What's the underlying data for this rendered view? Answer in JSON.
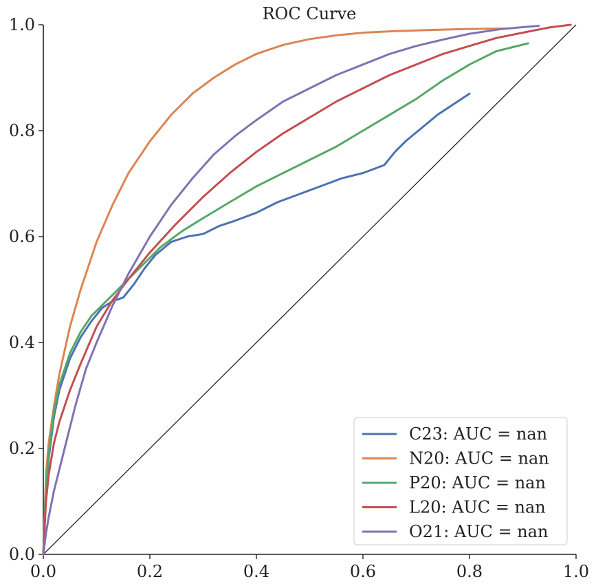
{
  "chart_data": {
    "type": "line",
    "title": "ROC Curve",
    "xlabel": "",
    "ylabel": "",
    "xlim": [
      0.0,
      1.0
    ],
    "ylim": [
      0.0,
      1.0
    ],
    "x_ticks": [
      "0.0",
      "0.2",
      "0.4",
      "0.6",
      "0.8",
      "1.0"
    ],
    "y_ticks": [
      "0.0",
      "0.2",
      "0.4",
      "0.6",
      "0.8",
      "1.0"
    ],
    "grid": false,
    "legend_position": "bottom-right",
    "reference_line": {
      "x": [
        0.0,
        1.0
      ],
      "y": [
        0.0,
        1.0
      ],
      "color": "#222222"
    },
    "series": [
      {
        "name": "C23: AUC =  nan",
        "color": "#4c72b0",
        "x": [
          0.0,
          0.005,
          0.01,
          0.02,
          0.03,
          0.05,
          0.07,
          0.09,
          0.11,
          0.13,
          0.15,
          0.17,
          0.19,
          0.21,
          0.24,
          0.27,
          0.3,
          0.33,
          0.36,
          0.4,
          0.44,
          0.48,
          0.52,
          0.56,
          0.6,
          0.64,
          0.66,
          0.68,
          0.71,
          0.74,
          0.77,
          0.8
        ],
        "y": [
          0.0,
          0.12,
          0.18,
          0.26,
          0.31,
          0.37,
          0.41,
          0.44,
          0.465,
          0.478,
          0.485,
          0.51,
          0.54,
          0.565,
          0.59,
          0.6,
          0.605,
          0.62,
          0.63,
          0.645,
          0.665,
          0.68,
          0.695,
          0.71,
          0.72,
          0.735,
          0.76,
          0.78,
          0.805,
          0.83,
          0.85,
          0.87
        ]
      },
      {
        "name": "N20: AUC =  nan",
        "color": "#dd8452",
        "x": [
          0.0,
          0.005,
          0.01,
          0.02,
          0.03,
          0.05,
          0.07,
          0.1,
          0.13,
          0.16,
          0.2,
          0.24,
          0.28,
          0.32,
          0.36,
          0.4,
          0.45,
          0.5,
          0.55,
          0.6,
          0.66,
          0.72,
          0.79,
          0.87
        ],
        "y": [
          0.0,
          0.15,
          0.21,
          0.28,
          0.34,
          0.43,
          0.5,
          0.59,
          0.66,
          0.72,
          0.78,
          0.83,
          0.87,
          0.9,
          0.925,
          0.945,
          0.962,
          0.973,
          0.98,
          0.985,
          0.988,
          0.99,
          0.992,
          0.993
        ]
      },
      {
        "name": "P20: AUC =  nan",
        "color": "#55a868",
        "x": [
          0.0,
          0.005,
          0.01,
          0.02,
          0.03,
          0.05,
          0.07,
          0.09,
          0.12,
          0.15,
          0.18,
          0.22,
          0.26,
          0.3,
          0.35,
          0.4,
          0.45,
          0.5,
          0.55,
          0.6,
          0.65,
          0.7,
          0.75,
          0.8,
          0.85,
          0.91
        ],
        "y": [
          0.0,
          0.13,
          0.19,
          0.27,
          0.32,
          0.38,
          0.42,
          0.45,
          0.48,
          0.51,
          0.54,
          0.58,
          0.61,
          0.635,
          0.665,
          0.695,
          0.72,
          0.745,
          0.77,
          0.8,
          0.83,
          0.86,
          0.895,
          0.925,
          0.95,
          0.965
        ]
      },
      {
        "name": "L20: AUC =  nan",
        "color": "#c44e52",
        "x": [
          0.0,
          0.005,
          0.01,
          0.02,
          0.03,
          0.05,
          0.07,
          0.1,
          0.13,
          0.16,
          0.2,
          0.25,
          0.3,
          0.35,
          0.4,
          0.45,
          0.5,
          0.55,
          0.6,
          0.65,
          0.7,
          0.75,
          0.8,
          0.85,
          0.9,
          0.95,
          0.99
        ],
        "y": [
          0.0,
          0.1,
          0.15,
          0.21,
          0.25,
          0.31,
          0.36,
          0.43,
          0.48,
          0.52,
          0.57,
          0.625,
          0.675,
          0.72,
          0.76,
          0.795,
          0.825,
          0.855,
          0.88,
          0.905,
          0.925,
          0.945,
          0.96,
          0.975,
          0.985,
          0.995,
          1.0
        ]
      },
      {
        "name": "O21: AUC =  nan",
        "color": "#8172b3",
        "x": [
          0.0,
          0.005,
          0.01,
          0.02,
          0.04,
          0.06,
          0.08,
          0.1,
          0.13,
          0.16,
          0.2,
          0.24,
          0.28,
          0.32,
          0.36,
          0.4,
          0.45,
          0.5,
          0.55,
          0.6,
          0.65,
          0.7,
          0.75,
          0.8,
          0.86,
          0.93
        ],
        "y": [
          0.0,
          0.04,
          0.07,
          0.12,
          0.2,
          0.28,
          0.35,
          0.4,
          0.47,
          0.53,
          0.6,
          0.66,
          0.71,
          0.755,
          0.79,
          0.82,
          0.855,
          0.88,
          0.905,
          0.925,
          0.945,
          0.96,
          0.972,
          0.983,
          0.992,
          0.998
        ]
      }
    ]
  }
}
